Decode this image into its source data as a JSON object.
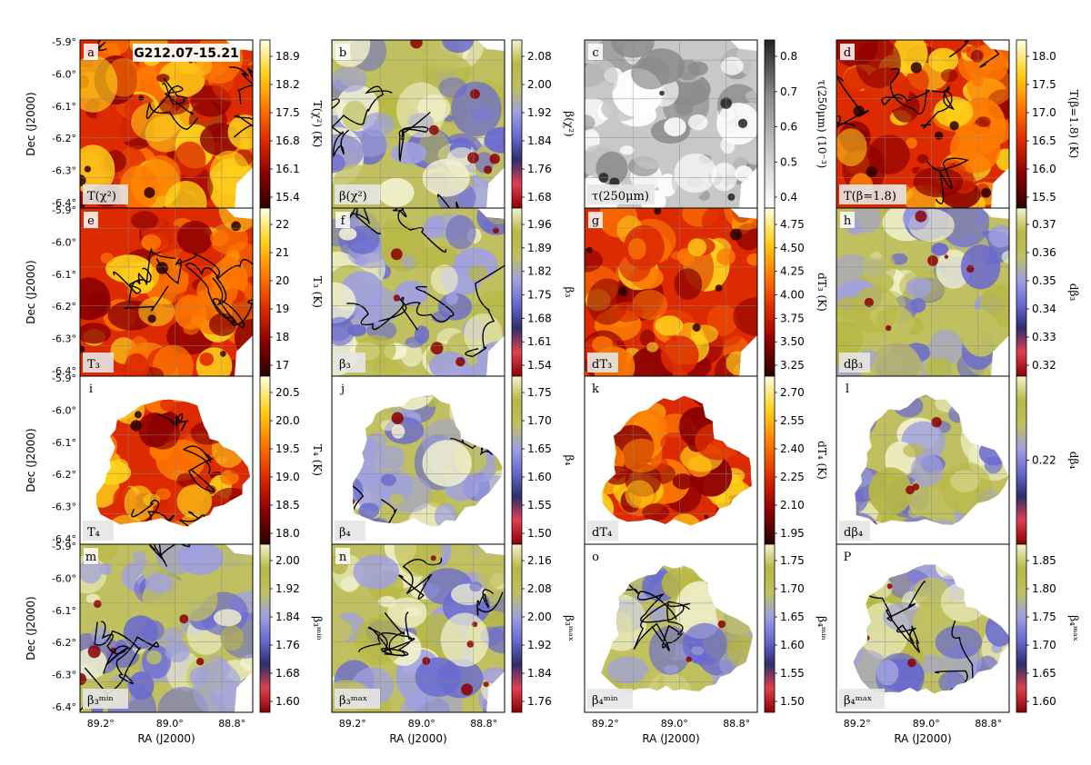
{
  "figure": {
    "source_label": "G212.07-15.21",
    "xlabel": "RA (J2000)",
    "ylabel": "Dec (J2000)",
    "ra_ticks": [
      "89.2°",
      "89.0°",
      "88.8°"
    ],
    "dec_ticks": [
      "-5.9°",
      "-6.0°",
      "-6.1°",
      "-6.2°",
      "-6.3°",
      "-6.4°"
    ]
  },
  "colormaps": {
    "heat": [
      "#2a0000",
      "#8b0000",
      "#dd2a00",
      "#ff7a00",
      "#ffd21a",
      "#ffffe6"
    ],
    "gray": [
      "#ffffff",
      "#c8c8c8",
      "#8a8a8a",
      "#222222"
    ],
    "div": [
      "#8b0000",
      "#e04050",
      "#2e2e6e",
      "#6a6ad0",
      "#a0a0e0",
      "#c0c060",
      "#b8b845",
      "#f2f2d0"
    ]
  },
  "panels": [
    {
      "letter": "a",
      "bottom_label": "T(χ²)",
      "cbar_label": "T(χ²) (K)",
      "cmap": "heat",
      "shape": "square",
      "ticks": [
        "18.9",
        "18.2",
        "17.5",
        "16.8",
        "16.1",
        "15.4"
      ],
      "contours": true
    },
    {
      "letter": "b",
      "bottom_label": "β(χ²)",
      "cbar_label": "β(χ²)",
      "cmap": "div",
      "shape": "square",
      "ticks": [
        "2.08",
        "2.00",
        "1.92",
        "1.84",
        "1.76",
        "1.68"
      ],
      "contours": true
    },
    {
      "letter": "c",
      "bottom_label": "τ(250μm)",
      "cbar_label": "τ(250μm) (10⁻³)",
      "cmap": "gray",
      "shape": "square",
      "ticks": [
        "0.8",
        "0.7",
        "0.6",
        "0.5",
        "0.4"
      ],
      "contours": false
    },
    {
      "letter": "d",
      "bottom_label": "T(β=1.8)",
      "cbar_label": "T(β=1.8) (K)",
      "cmap": "heat",
      "shape": "square",
      "ticks": [
        "18.0",
        "17.5",
        "17.0",
        "16.5",
        "16.0",
        "15.5"
      ],
      "contours": true
    },
    {
      "letter": "e",
      "bottom_label": "T₃",
      "cbar_label": "T₃ (K)",
      "cmap": "heat",
      "shape": "square",
      "ticks": [
        "22",
        "21",
        "20",
        "19",
        "18",
        "17"
      ],
      "contours": true
    },
    {
      "letter": "f",
      "bottom_label": "β₃",
      "cbar_label": "β₃",
      "cmap": "div",
      "shape": "square",
      "ticks": [
        "1.96",
        "1.89",
        "1.82",
        "1.75",
        "1.68",
        "1.61",
        "1.54"
      ],
      "contours": true
    },
    {
      "letter": "g",
      "bottom_label": "dT₃",
      "cbar_label": "dT₃ (K)",
      "cmap": "heat",
      "shape": "square",
      "ticks": [
        "4.75",
        "4.50",
        "4.25",
        "4.00",
        "3.75",
        "3.50",
        "3.25"
      ],
      "contours": false
    },
    {
      "letter": "h",
      "bottom_label": "dβ₃",
      "cbar_label": "dβ₃",
      "cmap": "div",
      "shape": "square",
      "ticks": [
        "0.37",
        "0.36",
        "0.35",
        "0.34",
        "0.33",
        "0.32"
      ],
      "contours": false
    },
    {
      "letter": "i",
      "bottom_label": "T₄",
      "cbar_label": "T₄ (K)",
      "cmap": "heat",
      "shape": "blob",
      "ticks": [
        "20.5",
        "20.0",
        "19.5",
        "19.0",
        "18.5",
        "18.0"
      ],
      "contours": true
    },
    {
      "letter": "j",
      "bottom_label": "β₄",
      "cbar_label": "β₄",
      "cmap": "div",
      "shape": "blob",
      "ticks": [
        "1.75",
        "1.70",
        "1.65",
        "1.60",
        "1.55",
        "1.50"
      ],
      "contours": true
    },
    {
      "letter": "k",
      "bottom_label": "dT₄",
      "cbar_label": "dT₄ (K)",
      "cmap": "heat",
      "shape": "blob",
      "ticks": [
        "2.70",
        "2.55",
        "2.40",
        "2.25",
        "2.10",
        "1.95"
      ],
      "contours": false
    },
    {
      "letter": "l",
      "bottom_label": "dβ₄",
      "cbar_label": "dβ₄",
      "cmap": "div",
      "shape": "blob",
      "ticks": [
        "0.22"
      ],
      "contours": false
    },
    {
      "letter": "m",
      "bottom_label": "β₃ᵐⁱⁿ",
      "cbar_label": "β₃ᵐⁱⁿ",
      "cmap": "div",
      "shape": "square",
      "ticks": [
        "2.00",
        "1.92",
        "1.84",
        "1.76",
        "1.68",
        "1.60"
      ],
      "contours": true
    },
    {
      "letter": "n",
      "bottom_label": "β₃ᵐᵃˣ",
      "cbar_label": "β₃ᵐᵃˣ",
      "cmap": "div",
      "shape": "square",
      "ticks": [
        "2.16",
        "2.08",
        "2.00",
        "1.92",
        "1.84",
        "1.76"
      ],
      "contours": true
    },
    {
      "letter": "o",
      "bottom_label": "β₄ᵐⁱⁿ",
      "cbar_label": "β₄ᵐⁱⁿ",
      "cmap": "div",
      "shape": "blob",
      "ticks": [
        "1.75",
        "1.70",
        "1.65",
        "1.60",
        "1.55",
        "1.50"
      ],
      "contours": true
    },
    {
      "letter": "P",
      "bottom_label": "β₄ᵐᵃˣ",
      "cbar_label": "β₄ᵐᵃˣ",
      "cmap": "div",
      "shape": "blob",
      "ticks": [
        "1.85",
        "1.80",
        "1.75",
        "1.70",
        "1.65",
        "1.60"
      ],
      "contours": true
    }
  ]
}
